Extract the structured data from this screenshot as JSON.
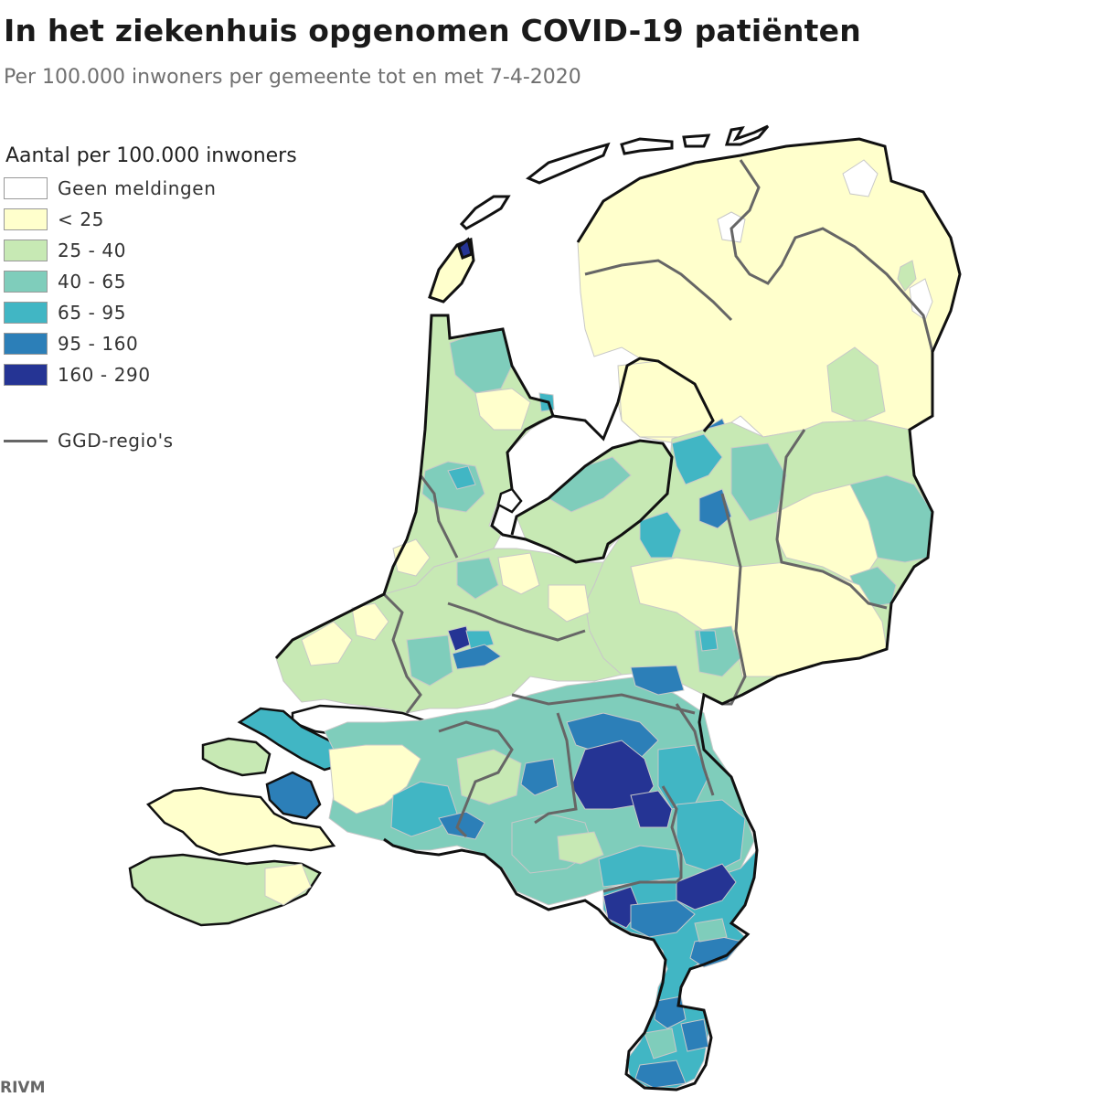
{
  "title": "In het ziekenhuis opgenomen COVID-19 patiënten",
  "subtitle": "Per 100.000 inwoners per gemeente tot en met 7-4-2020",
  "legend": {
    "title": "Aantal per 100.000 inwoners",
    "classes": [
      {
        "label": "Geen meldingen",
        "color": "#ffffff"
      },
      {
        "label": "< 25",
        "color": "#ffffcc"
      },
      {
        "label": "25 - 40",
        "color": "#c7e9b4"
      },
      {
        "label": "40 - 65",
        "color": "#7fcdbb"
      },
      {
        "label": "65 - 95",
        "color": "#41b6c4"
      },
      {
        "label": "95 - 160",
        "color": "#2c7fb8"
      },
      {
        "label": "160 - 290",
        "color": "#253494"
      }
    ],
    "ggd_label": "GGD-regio's",
    "ggd_color": "#666666"
  },
  "source": "RIVM"
}
